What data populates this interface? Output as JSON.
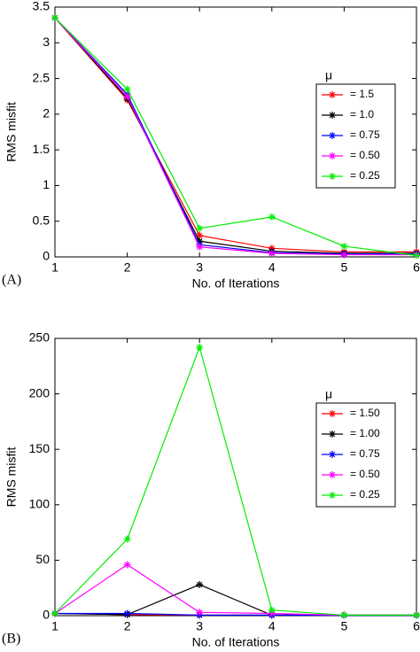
{
  "chart_data": [
    {
      "type": "line",
      "panel_label": "(A)",
      "x_label": "No. of Iterations",
      "y_label": "RMS misfit",
      "x": [
        1,
        2,
        3,
        4,
        5,
        6
      ],
      "xlim": [
        1,
        6
      ],
      "xticks": [
        1,
        2,
        3,
        4,
        5,
        6
      ],
      "ylim": [
        0,
        3.5
      ],
      "yticks": [
        0,
        0.5,
        1,
        1.5,
        2,
        2.5,
        3,
        3.5
      ],
      "legend_title": "μ",
      "legend": "upper right",
      "series": [
        {
          "name": "= 1.5",
          "color": "#ff0000",
          "values": [
            3.35,
            2.2,
            0.3,
            0.12,
            0.07,
            0.07
          ]
        },
        {
          "name": "= 1.0",
          "color": "#000000",
          "values": [
            3.35,
            2.22,
            0.22,
            0.08,
            0.05,
            0.05
          ]
        },
        {
          "name": "= 0.75",
          "color": "#0000ff",
          "values": [
            3.35,
            2.28,
            0.17,
            0.06,
            0.04,
            0.04
          ]
        },
        {
          "name": "= 0.50",
          "color": "#ff00ff",
          "values": [
            3.35,
            2.25,
            0.14,
            0.05,
            0.03,
            0.03
          ]
        },
        {
          "name": "= 0.25",
          "color": "#00ee00",
          "values": [
            3.35,
            2.35,
            0.4,
            0.56,
            0.15,
            0.02
          ]
        }
      ]
    },
    {
      "type": "line",
      "panel_label": "(B)",
      "x_label": "No. of Iterations",
      "y_label": "RMS misfit",
      "x": [
        1,
        2,
        3,
        4,
        5,
        6
      ],
      "xlim": [
        1,
        6
      ],
      "xticks": [
        1,
        2,
        3,
        4,
        5,
        6
      ],
      "ylim": [
        0,
        250
      ],
      "yticks": [
        0,
        50,
        100,
        150,
        200,
        250
      ],
      "legend_title": "μ",
      "legend": "upper right",
      "series": [
        {
          "name": "= 1.50",
          "color": "#ff0000",
          "values": [
            2,
            1,
            0.5,
            0.5,
            0.5,
            0.5
          ]
        },
        {
          "name": "= 1.00",
          "color": "#000000",
          "values": [
            2,
            1,
            28,
            0.5,
            0.5,
            0.5
          ]
        },
        {
          "name": "= 0.75",
          "color": "#0000ff",
          "values": [
            2,
            2,
            0.5,
            0.5,
            0.3,
            0.3
          ]
        },
        {
          "name": "= 0.50",
          "color": "#ff00ff",
          "values": [
            2,
            46,
            3,
            2,
            0.5,
            0.5
          ]
        },
        {
          "name": "= 0.25",
          "color": "#00ee00",
          "values": [
            2,
            69,
            242,
            5,
            0.5,
            0.5
          ]
        }
      ]
    }
  ]
}
